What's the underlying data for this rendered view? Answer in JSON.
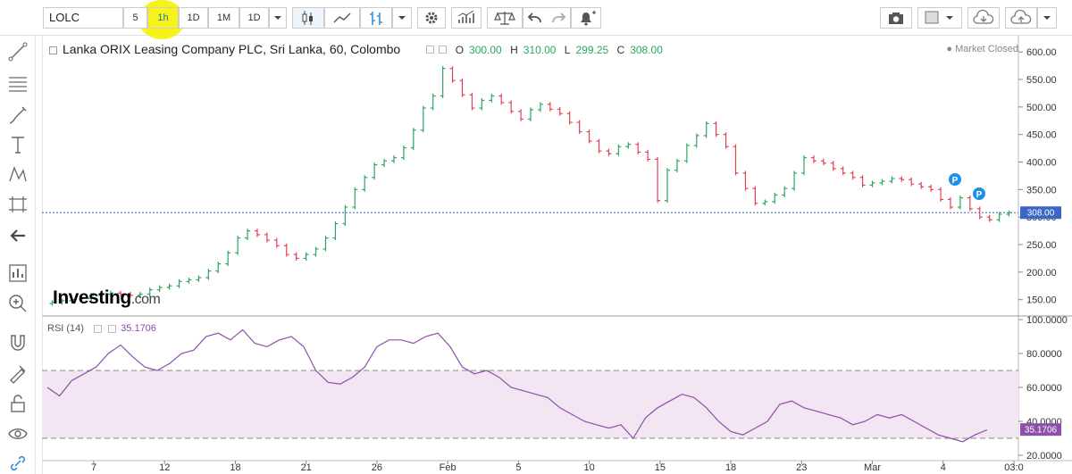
{
  "toolbar": {
    "symbol": "LOLC",
    "intervals": [
      "5",
      "1h",
      "1D",
      "1M",
      "1D"
    ],
    "selected_interval": "1h"
  },
  "chart": {
    "title": "Lanka ORIX Leasing Company PLC, Sri Lanka, 60, Colombo",
    "ohlc": {
      "o_label": "O",
      "o": "300.00",
      "h_label": "H",
      "h": "310.00",
      "l_label": "L",
      "l": "299.25",
      "c_label": "C",
      "c": "308.00"
    },
    "market_status": "Market Closed",
    "current_price": "308.00",
    "price_axis": [
      "600.00",
      "550.00",
      "500.00",
      "450.00",
      "400.00",
      "350.00",
      "300.00",
      "250.00",
      "200.00",
      "150.00"
    ],
    "time_axis": [
      "7",
      "12",
      "18",
      "21",
      "26",
      "Feb",
      "5",
      "10",
      "15",
      "18",
      "23",
      "Mar",
      "4",
      "03:0"
    ],
    "logo_main": "Investing",
    "logo_suffix": ".com",
    "markers": [
      "P",
      "P"
    ],
    "colors": {
      "up": "#2da661",
      "down": "#e8404e",
      "rsi": "#8d4fa9",
      "rsi_band": "#f3e6f3",
      "price_line": "#3a66c4"
    }
  },
  "rsi": {
    "label": "RSI (14)",
    "value": "35.1706",
    "axis": [
      "100.0000",
      "80.0000",
      "60.0000",
      "40.0000",
      "20.0000"
    ]
  },
  "chart_data": {
    "type": "line",
    "title": "Lanka ORIX Leasing Company PLC, Sri Lanka, 60, Colombo",
    "xlabel": "",
    "ylabel": "",
    "ylim": [
      130,
      610
    ],
    "x_ticks": [
      "7",
      "12",
      "18",
      "21",
      "26",
      "Feb",
      "5",
      "10",
      "15",
      "18",
      "23",
      "Mar",
      "4"
    ],
    "series": [
      {
        "values": [
          145,
          148,
          150,
          152,
          158,
          160,
          162,
          160,
          158,
          160,
          168,
          172,
          175,
          183,
          186,
          190,
          202,
          215,
          235,
          262,
          275,
          268,
          258,
          248,
          232,
          225,
          232,
          242,
          262,
          288,
          318,
          350,
          372,
          395,
          402,
          408,
          426,
          458,
          498,
          520,
          570,
          548,
          522,
          498,
          512,
          520,
          508,
          492,
          478,
          495,
          505,
          496,
          488,
          472,
          455,
          438,
          420,
          415,
          428,
          432,
          418,
          405,
          330,
          385,
          402,
          430,
          448,
          470,
          450,
          428,
          380,
          352,
          325,
          328,
          340,
          352,
          380,
          408,
          402,
          398,
          388,
          380,
          372,
          358,
          362,
          365,
          370,
          368,
          360,
          355,
          350,
          332,
          318,
          335,
          315,
          300,
          295,
          305,
          308
        ]
      },
      {
        "name": "RSI (14)",
        "values": [
          60,
          55,
          64,
          68,
          72,
          80,
          85,
          78,
          72,
          70,
          74,
          80,
          82,
          90,
          92,
          88,
          94,
          86,
          84,
          88,
          90,
          84,
          70,
          63,
          62,
          66,
          72,
          84,
          88,
          88,
          86,
          90,
          92,
          84,
          72,
          68,
          70,
          66,
          60,
          58,
          56,
          54,
          48,
          44,
          40,
          38,
          36,
          38,
          30,
          42,
          48,
          52,
          56,
          54,
          48,
          40,
          34,
          32,
          36,
          40,
          50,
          52,
          48,
          46,
          44,
          42,
          38,
          40,
          44,
          42,
          44,
          40,
          36,
          32,
          30,
          28,
          32,
          35
        ]
      }
    ],
    "rsi_band": [
      30,
      70
    ],
    "rsi_ylim": [
      20,
      100
    ],
    "grid": false,
    "legend": "none"
  }
}
